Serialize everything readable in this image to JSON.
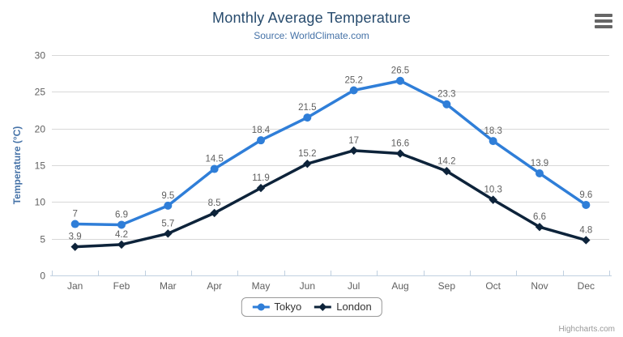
{
  "chart_data": {
    "type": "line",
    "title": "Monthly Average Temperature",
    "subtitle": "Source: WorldClimate.com",
    "xlabel": "",
    "ylabel": "Temperature (°C)",
    "categories": [
      "Jan",
      "Feb",
      "Mar",
      "Apr",
      "May",
      "Jun",
      "Jul",
      "Aug",
      "Sep",
      "Oct",
      "Nov",
      "Dec"
    ],
    "series": [
      {
        "name": "Tokyo",
        "color": "#2f7ed8",
        "marker": "circle",
        "values": [
          7,
          6.9,
          9.5,
          14.5,
          18.4,
          21.5,
          25.2,
          26.5,
          23.3,
          18.3,
          13.9,
          9.6
        ]
      },
      {
        "name": "London",
        "color": "#0d233a",
        "marker": "diamond",
        "values": [
          3.9,
          4.2,
          5.7,
          8.5,
          11.9,
          15.2,
          17,
          16.6,
          14.2,
          10.3,
          6.6,
          4.8
        ]
      }
    ],
    "ylim": [
      0,
      30
    ],
    "yticks": [
      0,
      5,
      10,
      15,
      20,
      25,
      30
    ],
    "grid": true,
    "data_labels": true,
    "legend_position": "bottom-center",
    "colors": {
      "title": "#274b6d",
      "subtitle": "#4572a7",
      "axis_title": "#4572a7",
      "tick_label": "#606060",
      "data_label": "#606060",
      "grid_line": "#d8d8d8",
      "axis_line": "#c0d0e0",
      "legend_border": "#999999",
      "legend_text": "#333333",
      "credits": "#999999",
      "menu_icon": "#666666"
    }
  },
  "credits": {
    "label": "Highcharts.com"
  },
  "icons": {
    "context_menu": "hamburger-icon"
  }
}
